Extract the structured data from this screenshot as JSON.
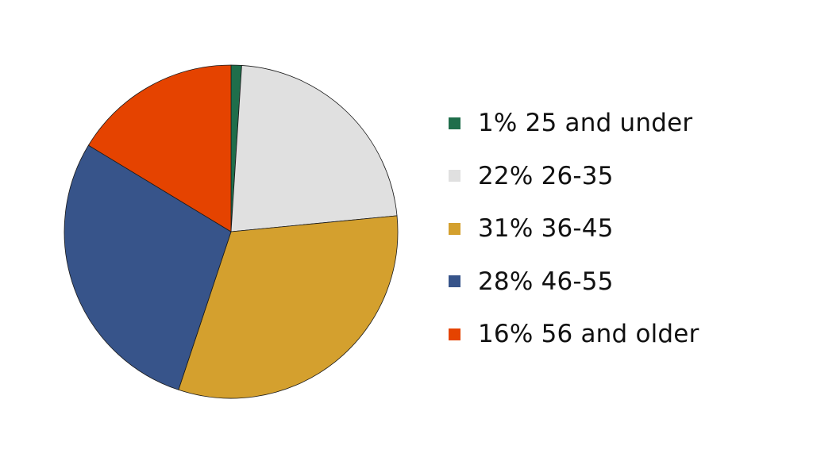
{
  "chart_data": {
    "type": "pie",
    "slices": [
      {
        "label": "25 and under",
        "percent_label": "1%",
        "value": 1,
        "color": "#1f6e4b"
      },
      {
        "label": "26-35",
        "percent_label": "22%",
        "value": 22,
        "color": "#e0e0e0"
      },
      {
        "label": "36-45",
        "percent_label": "31%",
        "value": 31,
        "color": "#d4a02e"
      },
      {
        "label": "46-55",
        "percent_label": "28%",
        "value": 28,
        "color": "#37548a"
      },
      {
        "label": "56 and older",
        "percent_label": "16%",
        "value": 16,
        "color": "#e54300"
      }
    ],
    "start_angle_deg": 0,
    "direction": "clockwise",
    "legend_position": "right"
  }
}
